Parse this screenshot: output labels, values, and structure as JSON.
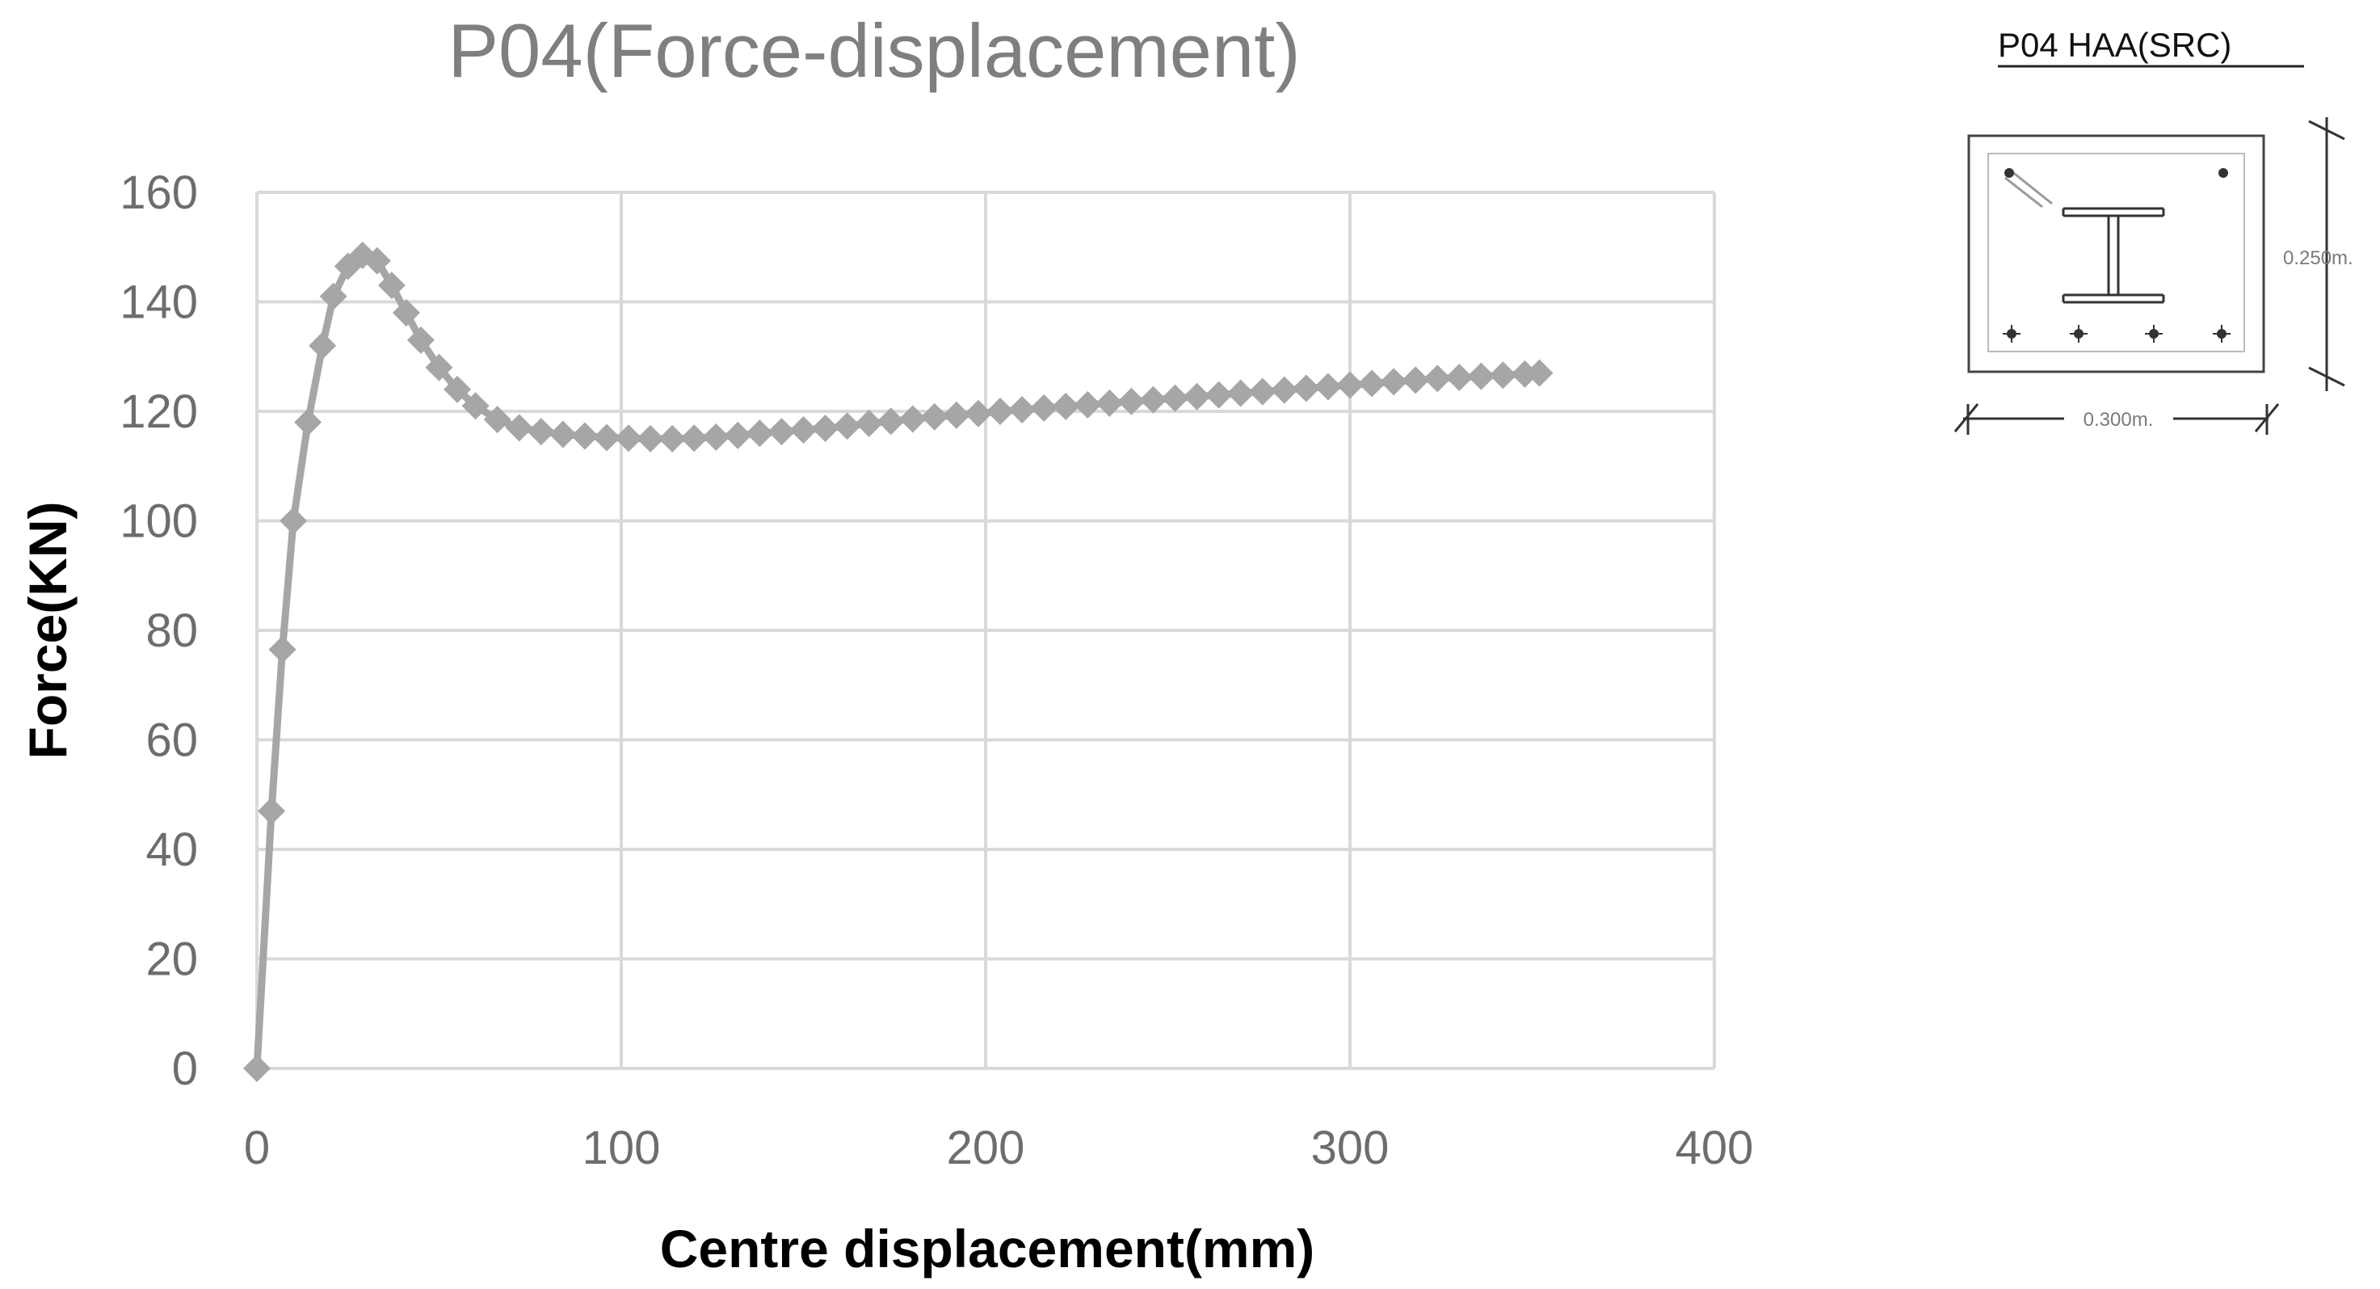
{
  "chart_data": {
    "type": "line",
    "title": "P04(Force-displacement)",
    "xlabel": "Centre displacement(mm)",
    "ylabel": "Force(KN)",
    "xlim": [
      0,
      400
    ],
    "ylim": [
      0,
      160
    ],
    "xticks": [
      0,
      100,
      200,
      300,
      400
    ],
    "yticks": [
      0,
      20,
      40,
      60,
      80,
      100,
      120,
      140,
      160
    ],
    "grid": true,
    "marker": "diamond",
    "colors": {
      "series": "#a6a6a6",
      "grid": "#d9d9d9",
      "tick_text": "#6d6d6d",
      "title": "#7f7f7f"
    },
    "series": [
      {
        "x": [
          0,
          4,
          7,
          10,
          14,
          18,
          21,
          25,
          29,
          33,
          37,
          41,
          45,
          50,
          55,
          60,
          66,
          72,
          78,
          84,
          90,
          96,
          102,
          108,
          114,
          120,
          126,
          132,
          138,
          144,
          150,
          156,
          162,
          168,
          174,
          180,
          186,
          192,
          198,
          204,
          210,
          216,
          222,
          228,
          234,
          240,
          246,
          252,
          258,
          264,
          270,
          276,
          282,
          288,
          294,
          300,
          306,
          312,
          318,
          324,
          330,
          336,
          342,
          348,
          352
        ],
        "y": [
          0,
          47,
          76.5,
          100,
          118,
          132,
          141,
          146.5,
          148.5,
          147.5,
          143,
          138,
          133,
          128,
          124,
          121,
          118.5,
          117,
          116.3,
          115.8,
          115.5,
          115.2,
          115.1,
          115,
          115,
          115.1,
          115.3,
          115.6,
          116,
          116.3,
          116.6,
          116.9,
          117.3,
          117.8,
          118.2,
          118.6,
          119,
          119.3,
          119.6,
          120,
          120.3,
          120.6,
          120.9,
          121.2,
          121.5,
          121.8,
          122.1,
          122.4,
          122.7,
          123,
          123.3,
          123.6,
          123.9,
          124.2,
          124.5,
          124.8,
          125.1,
          125.4,
          125.7,
          126,
          126.2,
          126.4,
          126.6,
          126.8,
          127
        ]
      }
    ]
  },
  "section": {
    "title": "P04  HAA(SRC)",
    "width_label": "0.300m.",
    "height_label": "0.250m."
  }
}
